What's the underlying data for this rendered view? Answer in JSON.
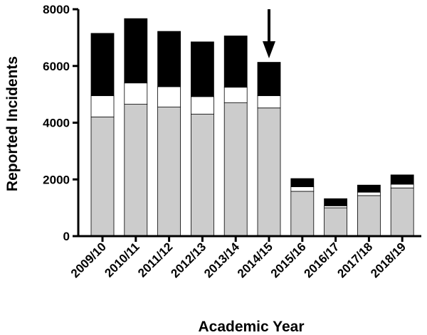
{
  "chart_data": {
    "type": "bar",
    "stacked": true,
    "xlabel": "Academic Year",
    "ylabel": "Reported Incidents",
    "ylim": [
      0,
      8000
    ],
    "yticks": [
      0,
      2000,
      4000,
      6000,
      8000
    ],
    "categories": [
      "2009/10",
      "2010/11",
      "2011/12",
      "2012/13",
      "2013/14",
      "2014/15",
      "2015/16",
      "2016/17",
      "2017/18",
      "2018/19"
    ],
    "series": [
      {
        "color": "#cccccc",
        "values": [
          4200,
          4650,
          4550,
          4300,
          4700,
          4520,
          1580,
          1000,
          1430,
          1700
        ]
      },
      {
        "color": "#ffffff",
        "values": [
          750,
          750,
          720,
          620,
          550,
          430,
          160,
          70,
          120,
          130
        ]
      },
      {
        "color": "#000000",
        "values": [
          2200,
          2270,
          1950,
          1930,
          1810,
          1180,
          290,
          250,
          250,
          330
        ]
      }
    ],
    "annotation": {
      "type": "arrow",
      "category": "2014/15",
      "direction": "down"
    },
    "grid": false,
    "legend": "none"
  }
}
